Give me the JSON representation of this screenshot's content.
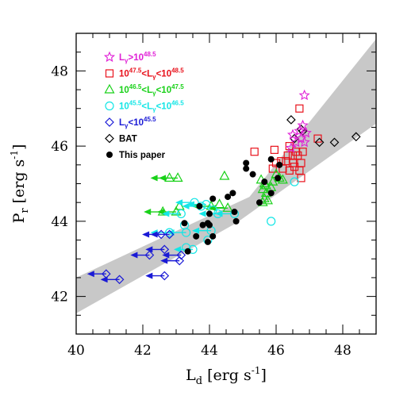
{
  "chart_data": {
    "type": "scatter",
    "xlabel": {
      "base": "L",
      "sub": "d",
      "units": "[erg s",
      "exp": "-1",
      "close": "]"
    },
    "ylabel": {
      "base": "P",
      "sub": "r",
      "units": "[erg s",
      "exp": "-1",
      "close": "]"
    },
    "xlim": [
      40,
      49
    ],
    "ylim": [
      41,
      49
    ],
    "xticks": [
      "40",
      "42",
      "44",
      "46",
      "48"
    ],
    "yticks": [
      "42",
      "44",
      "46",
      "48"
    ],
    "legend_position": "top-left",
    "band": {
      "upper": [
        [
          40,
          42.5
        ],
        [
          45.2,
          44.65
        ],
        [
          49,
          48.85
        ]
      ],
      "lower": [
        [
          40,
          41.55
        ],
        [
          44.8,
          43.95
        ],
        [
          49,
          46.6
        ]
      ]
    },
    "series": [
      {
        "name": "L_γ>10^48.5",
        "legend": [
          "L",
          "γ",
          ">10",
          "48.5",
          ""
        ],
        "marker": "star",
        "color": "#e01fd6",
        "points": [
          [
            46.85,
            47.35
          ],
          [
            46.5,
            46.3
          ],
          [
            46.7,
            46.4
          ],
          [
            46.8,
            46.55
          ],
          [
            46.6,
            46.1
          ],
          [
            46.75,
            46.2
          ],
          [
            46.9,
            46.35
          ],
          [
            46.85,
            46.1
          ],
          [
            46.45,
            45.95
          ]
        ],
        "upper_limits": []
      },
      {
        "name": "10^47.5<L_γ<10^48.5",
        "legend": [
          "10",
          "47.5",
          "<L",
          "γ",
          "<10",
          "48.5"
        ],
        "marker": "square",
        "color": "#e8111b",
        "points": [
          [
            46.7,
            47.0
          ],
          [
            45.35,
            45.85
          ],
          [
            45.95,
            45.9
          ],
          [
            46.4,
            46.0
          ],
          [
            46.6,
            45.85
          ],
          [
            46.5,
            45.75
          ],
          [
            46.3,
            45.6
          ],
          [
            46.15,
            45.6
          ],
          [
            46.0,
            45.55
          ],
          [
            45.9,
            45.4
          ],
          [
            46.2,
            45.4
          ],
          [
            46.4,
            45.35
          ],
          [
            46.55,
            45.45
          ],
          [
            46.75,
            45.55
          ],
          [
            46.7,
            45.35
          ],
          [
            46.35,
            45.75
          ],
          [
            46.8,
            45.85
          ],
          [
            47.25,
            46.2
          ],
          [
            46.75,
            45.15
          ],
          [
            46.65,
            45.75
          ],
          [
            46.5,
            45.55
          ]
        ],
        "upper_limits": []
      },
      {
        "name": "10^46.5<L_γ<10^47.5",
        "legend": [
          "10",
          "46.5",
          "<L",
          "γ",
          "<10",
          "47.5"
        ],
        "marker": "triangle",
        "color": "#19d119",
        "points": [
          [
            44.45,
            45.2
          ],
          [
            43.1,
            44.4
          ],
          [
            45.55,
            45.1
          ],
          [
            45.65,
            45.0
          ],
          [
            45.7,
            44.95
          ],
          [
            45.6,
            44.85
          ],
          [
            45.7,
            44.75
          ],
          [
            45.65,
            44.6
          ],
          [
            45.85,
            44.9
          ],
          [
            46.0,
            45.25
          ],
          [
            46.1,
            45.15
          ],
          [
            46.2,
            45.1
          ],
          [
            45.6,
            44.5
          ],
          [
            45.9,
            45.05
          ],
          [
            45.75,
            44.55
          ],
          [
            44.3,
            44.45
          ]
        ],
        "upper_limits": [
          [
            42.8,
            45.15
          ],
          [
            43.05,
            45.15
          ],
          [
            44.55,
            44.35
          ],
          [
            43.0,
            44.25
          ],
          [
            42.6,
            44.25
          ],
          [
            44.05,
            44.4
          ]
        ]
      },
      {
        "name": "10^45.5<L_γ<10^46.5",
        "legend": [
          "10",
          "45.5",
          "<L",
          "γ",
          "<10",
          "46.5"
        ],
        "marker": "circle",
        "color": "#14e6e6",
        "points": [
          [
            45.85,
            44.0
          ],
          [
            46.55,
            45.05
          ],
          [
            43.95,
            43.5
          ],
          [
            44.1,
            44.3
          ],
          [
            43.3,
            43.3
          ],
          [
            43.25,
            43.9
          ]
        ],
        "upper_limits": [
          [
            43.55,
            44.5
          ],
          [
            43.75,
            44.4
          ],
          [
            43.9,
            44.45
          ],
          [
            44.25,
            44.2
          ],
          [
            44.75,
            44.2
          ],
          [
            43.15,
            44.2
          ],
          [
            42.8,
            43.7
          ],
          [
            43.3,
            43.7
          ],
          [
            43.5,
            43.25
          ],
          [
            44.05,
            43.75
          ]
        ]
      },
      {
        "name": "L_γ<10^45.5",
        "legend": [
          "L",
          "γ",
          "<10",
          "45.5",
          ""
        ],
        "marker": "diamond",
        "color": "#1a1ad6",
        "points": [],
        "upper_limits": [
          [
            42.55,
            43.65
          ],
          [
            42.2,
            43.1
          ],
          [
            42.65,
            43.25
          ],
          [
            43.15,
            43.1
          ],
          [
            43.1,
            42.95
          ],
          [
            40.9,
            42.6
          ],
          [
            41.3,
            42.45
          ],
          [
            42.65,
            42.55
          ],
          [
            42.8,
            43.65
          ]
        ]
      },
      {
        "name": "BAT",
        "legend": [
          "BAT",
          "",
          "",
          "",
          ""
        ],
        "marker": "diamond",
        "color": "#000000",
        "points": [
          [
            46.45,
            46.7
          ],
          [
            46.8,
            46.4
          ],
          [
            47.3,
            46.1
          ],
          [
            47.75,
            46.1
          ],
          [
            48.4,
            46.25
          ],
          [
            46.55,
            46.2
          ],
          [
            46.75,
            46.45
          ]
        ],
        "upper_limits": []
      },
      {
        "name": "This paper",
        "legend": [
          "This paper",
          "",
          "",
          "",
          ""
        ],
        "marker": "filled-circle",
        "color": "#000000",
        "points": [
          [
            45.1,
            45.55
          ],
          [
            45.3,
            45.25
          ],
          [
            45.65,
            45.05
          ],
          [
            46.05,
            45.15
          ],
          [
            45.85,
            45.65
          ],
          [
            44.55,
            44.65
          ],
          [
            44.7,
            44.75
          ],
          [
            44.75,
            44.25
          ],
          [
            44.8,
            44.0
          ],
          [
            44.1,
            44.6
          ],
          [
            44.0,
            44.2
          ],
          [
            43.95,
            43.95
          ],
          [
            43.8,
            43.9
          ],
          [
            43.6,
            43.6
          ],
          [
            43.25,
            43.95
          ],
          [
            43.7,
            44.4
          ],
          [
            44.0,
            43.9
          ],
          [
            44.1,
            43.6
          ],
          [
            43.95,
            43.45
          ],
          [
            43.35,
            43.2
          ],
          [
            45.1,
            45.4
          ],
          [
            45.5,
            44.5
          ],
          [
            45.85,
            44.75
          ],
          [
            46.1,
            45.5
          ]
        ],
        "upper_limits": []
      }
    ]
  }
}
